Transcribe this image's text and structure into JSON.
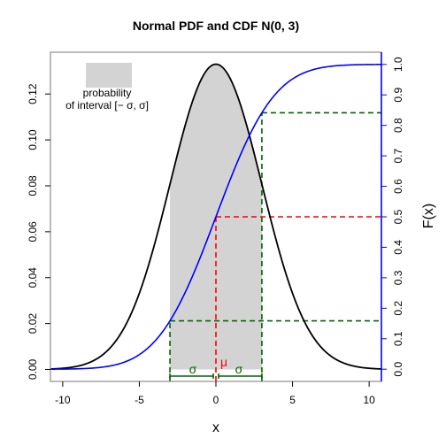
{
  "chart_data": {
    "type": "line",
    "title": "Normal PDF and CDF N(0, 3)",
    "xlabel": "x",
    "ylabel_right": "F(x)",
    "mu": 0,
    "sigma": 3,
    "xlim": [
      -10.8,
      10.8
    ],
    "ylim_left": [
      -0.0052,
      0.1382
    ],
    "ylim_right": [
      -0.04,
      1.04
    ],
    "x_ticks": [
      -10,
      -5,
      0,
      5,
      10
    ],
    "y_left_ticks": [
      0.0,
      0.02,
      0.04,
      0.06,
      0.08,
      0.1,
      0.12
    ],
    "y_left_tick_labels": [
      "0.00",
      "0.02",
      "0.04",
      "0.06",
      "0.08",
      "0.10",
      "0.12"
    ],
    "y_right_ticks": [
      0.0,
      0.1,
      0.2,
      0.3,
      0.4,
      0.5,
      0.6,
      0.7,
      0.8,
      0.9,
      1.0
    ],
    "y_right_tick_labels": [
      "0.0",
      "0.1",
      "0.2",
      "0.3",
      "0.4",
      "0.5",
      "0.6",
      "0.7",
      "0.8",
      "0.9",
      "1.0"
    ],
    "shaded_interval": [
      -3,
      3
    ],
    "cdf_reference_levels": [
      0.1587,
      0.5,
      0.8413
    ],
    "series": [
      {
        "color": "#000000"
      },
      {
        "color": "#0000ff"
      }
    ],
    "annotations": {
      "legend_line1": "probability",
      "legend_line2": "of interval [− σ, σ]",
      "sigma_left": "σ",
      "sigma_right": "σ",
      "mu": "μ"
    },
    "colors": {
      "shade": "#d3d3d3",
      "pdf": "#000000",
      "cdf": "#0000ff",
      "mean_ref": "#ff0000",
      "sigma_ref": "#006400",
      "right_axis": "#0000ff"
    }
  }
}
